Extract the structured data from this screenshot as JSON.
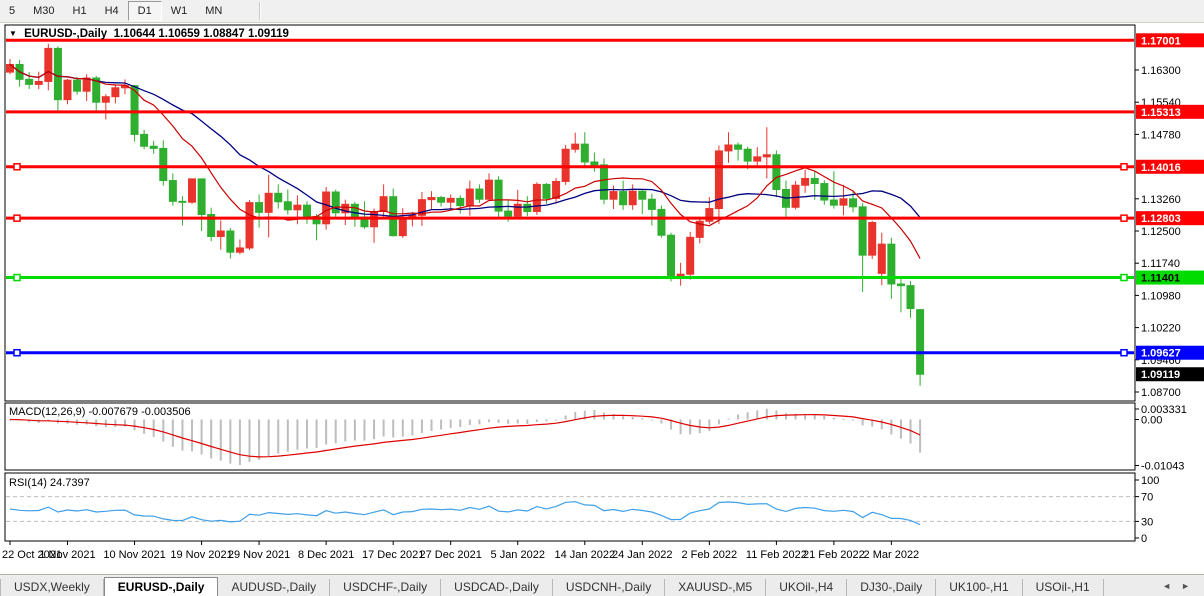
{
  "toolbar": {
    "timeframes": [
      {
        "label": "5",
        "active": false
      },
      {
        "label": "M30",
        "active": false
      },
      {
        "label": "H1",
        "active": false
      },
      {
        "label": "H4",
        "active": false
      },
      {
        "label": "D1",
        "active": true
      },
      {
        "label": "W1",
        "active": false
      },
      {
        "label": "MN",
        "active": false
      }
    ]
  },
  "chart_header": {
    "dropdown_icon": "▼",
    "symbol": "EURUSD-,Daily",
    "open": "1.10644",
    "high": "1.10659",
    "low": "1.08847",
    "close": "1.09119"
  },
  "indicators": {
    "macd": {
      "label": "MACD(12,26,9)",
      "main_value": "-0.007679",
      "signal_value": "-0.003506",
      "axis_labels": [
        "0.003331",
        "0.00",
        "-0.01043"
      ],
      "axis_values": [
        0.003331,
        0.0,
        -0.01043
      ],
      "fast": 12,
      "slow": 26,
      "signal": 9
    },
    "rsi": {
      "label": "RSI(14)",
      "value": "24.7397",
      "period": 14,
      "axis_labels": [
        "100",
        "70",
        "30",
        "0"
      ],
      "axis_values": [
        100,
        70,
        30,
        0
      ],
      "levels": [
        70,
        30
      ]
    }
  },
  "chart_data": {
    "type": "candlestick",
    "title": "EURUSD-,Daily",
    "symbol": "EURUSD",
    "timeframe": "Daily",
    "last_ohlc": {
      "open": 1.10644,
      "high": 1.10659,
      "low": 1.08847,
      "close": 1.09119
    },
    "y_ticks": [
      "1.16300",
      "1.15540",
      "1.14780",
      "1.13260",
      "1.12500",
      "1.11740",
      "1.10980",
      "1.10220",
      "1.09460",
      "1.08700"
    ],
    "y_range": [
      1.087,
      1.1706
    ],
    "grid": false,
    "x_labels": [
      {
        "label": "22 Oct 2021",
        "idx": 0
      },
      {
        "label": "1 Nov 2021",
        "idx": 6
      },
      {
        "label": "10 Nov 2021",
        "idx": 13
      },
      {
        "label": "19 Nov 2021",
        "idx": 20
      },
      {
        "label": "29 Nov 2021",
        "idx": 26
      },
      {
        "label": "8 Dec 2021",
        "idx": 33
      },
      {
        "label": "17 Dec 2021",
        "idx": 40
      },
      {
        "label": "27 Dec 2021",
        "idx": 46
      },
      {
        "label": "5 Jan 2022",
        "idx": 53
      },
      {
        "label": "14 Jan 2022",
        "idx": 60
      },
      {
        "label": "24 Jan 2022",
        "idx": 66
      },
      {
        "label": "2 Feb 2022",
        "idx": 73
      },
      {
        "label": "11 Feb 2022",
        "idx": 80
      },
      {
        "label": "21 Feb 2022",
        "idx": 86
      },
      {
        "label": "2 Mar 2022",
        "idx": 92
      }
    ],
    "hlines": [
      {
        "price": 1.17001,
        "label": "1.17001",
        "color": "#ff0000",
        "label_text": "#ffffff",
        "handles": false
      },
      {
        "price": 1.15313,
        "label": "1.15313",
        "color": "#ff0000",
        "label_text": "#ffffff",
        "handles": false
      },
      {
        "price": 1.14016,
        "label": "1.14016",
        "color": "#ff0000",
        "label_text": "#ffffff",
        "handles": true
      },
      {
        "price": 1.12803,
        "label": "1.12803",
        "color": "#ff0000",
        "label_text": "#ffffff",
        "handles": true
      },
      {
        "price": 1.11401,
        "label": "1.11401",
        "color": "#00dc00",
        "label_text": "#000000",
        "handles": true
      },
      {
        "price": 1.09627,
        "label": "1.09627",
        "color": "#0000ff",
        "label_text": "#ffffff",
        "handles": true
      }
    ],
    "current_price": {
      "value": 1.09119,
      "label": "1.09119",
      "bg": "#000000",
      "text": "#ffffff"
    },
    "ma_fast_period": 10,
    "ma_slow_period": 20,
    "candles": [
      [
        1.1625,
        1.1656,
        1.162,
        1.1643
      ],
      [
        1.1643,
        1.1654,
        1.1591,
        1.1608
      ],
      [
        1.1608,
        1.1625,
        1.1585,
        1.1596
      ],
      [
        1.1596,
        1.1626,
        1.1585,
        1.1603
      ],
      [
        1.1603,
        1.1692,
        1.1582,
        1.1681
      ],
      [
        1.1681,
        1.1686,
        1.1535,
        1.156
      ],
      [
        1.156,
        1.1609,
        1.1549,
        1.1606
      ],
      [
        1.1606,
        1.1614,
        1.1572,
        1.158
      ],
      [
        1.158,
        1.162,
        1.1557,
        1.1611
      ],
      [
        1.1611,
        1.1616,
        1.1528,
        1.1554
      ],
      [
        1.1554,
        1.1573,
        1.1513,
        1.1567
      ],
      [
        1.1567,
        1.1596,
        1.1551,
        1.1588
      ],
      [
        1.1588,
        1.1608,
        1.1573,
        1.1593
      ],
      [
        1.1593,
        1.1595,
        1.1461,
        1.1478
      ],
      [
        1.1478,
        1.1489,
        1.1443,
        1.145
      ],
      [
        1.145,
        1.1463,
        1.1432,
        1.1445
      ],
      [
        1.1445,
        1.1464,
        1.1357,
        1.1369
      ],
      [
        1.1369,
        1.1386,
        1.131,
        1.132
      ],
      [
        1.132,
        1.1332,
        1.1263,
        1.1318
      ],
      [
        1.1318,
        1.1374,
        1.1314,
        1.1373
      ],
      [
        1.1373,
        1.1374,
        1.125,
        1.1289
      ],
      [
        1.1289,
        1.1305,
        1.1226,
        1.1237
      ],
      [
        1.1237,
        1.1275,
        1.1206,
        1.125
      ],
      [
        1.125,
        1.1257,
        1.1185,
        1.12
      ],
      [
        1.12,
        1.123,
        1.1195,
        1.121
      ],
      [
        1.121,
        1.1323,
        1.1205,
        1.1317
      ],
      [
        1.1317,
        1.1336,
        1.1258,
        1.1294
      ],
      [
        1.1294,
        1.1383,
        1.1235,
        1.1339
      ],
      [
        1.1339,
        1.136,
        1.1303,
        1.1319
      ],
      [
        1.1319,
        1.1348,
        1.1289,
        1.13
      ],
      [
        1.13,
        1.1334,
        1.1266,
        1.1311
      ],
      [
        1.1311,
        1.132,
        1.1267,
        1.1284
      ],
      [
        1.1284,
        1.129,
        1.1228,
        1.1267
      ],
      [
        1.1267,
        1.1354,
        1.1253,
        1.1342
      ],
      [
        1.1342,
        1.1348,
        1.128,
        1.1293
      ],
      [
        1.1293,
        1.1324,
        1.1264,
        1.1313
      ],
      [
        1.1313,
        1.1319,
        1.126,
        1.1283
      ],
      [
        1.1283,
        1.132,
        1.1255,
        1.126
      ],
      [
        1.126,
        1.1303,
        1.1222,
        1.1296
      ],
      [
        1.1296,
        1.136,
        1.1281,
        1.1331
      ],
      [
        1.1331,
        1.135,
        1.1237,
        1.1239
      ],
      [
        1.1239,
        1.1304,
        1.1234,
        1.1281
      ],
      [
        1.1281,
        1.1295,
        1.1261,
        1.1287
      ],
      [
        1.1287,
        1.1342,
        1.1262,
        1.1324
      ],
      [
        1.1324,
        1.1344,
        1.13,
        1.1329
      ],
      [
        1.1329,
        1.1333,
        1.1308,
        1.1318
      ],
      [
        1.1318,
        1.1336,
        1.1302,
        1.1327
      ],
      [
        1.1327,
        1.1334,
        1.1291,
        1.131
      ],
      [
        1.131,
        1.1369,
        1.1286,
        1.1349
      ],
      [
        1.1349,
        1.136,
        1.1316,
        1.1325
      ],
      [
        1.1325,
        1.1386,
        1.1321,
        1.137
      ],
      [
        1.137,
        1.1379,
        1.1279,
        1.1297
      ],
      [
        1.1297,
        1.1324,
        1.1272,
        1.1285
      ],
      [
        1.1285,
        1.1347,
        1.1278,
        1.1313
      ],
      [
        1.1313,
        1.1332,
        1.1285,
        1.1296
      ],
      [
        1.1296,
        1.1365,
        1.1288,
        1.136
      ],
      [
        1.136,
        1.1363,
        1.1314,
        1.1327
      ],
      [
        1.1327,
        1.1375,
        1.1315,
        1.1367
      ],
      [
        1.1367,
        1.1453,
        1.1359,
        1.1443
      ],
      [
        1.1443,
        1.1482,
        1.1435,
        1.1455
      ],
      [
        1.1455,
        1.1483,
        1.1398,
        1.1413
      ],
      [
        1.1413,
        1.1435,
        1.139,
        1.1406
      ],
      [
        1.1406,
        1.1421,
        1.1313,
        1.1325
      ],
      [
        1.1325,
        1.1357,
        1.1302,
        1.1343
      ],
      [
        1.1343,
        1.1369,
        1.13,
        1.1312
      ],
      [
        1.1312,
        1.136,
        1.13,
        1.1344
      ],
      [
        1.1344,
        1.1349,
        1.129,
        1.1325
      ],
      [
        1.1325,
        1.1338,
        1.1263,
        1.1301
      ],
      [
        1.1301,
        1.131,
        1.1234,
        1.124
      ],
      [
        1.124,
        1.1246,
        1.1131,
        1.1145
      ],
      [
        1.1145,
        1.1175,
        1.1121,
        1.1148
      ],
      [
        1.1148,
        1.1248,
        1.1135,
        1.1235
      ],
      [
        1.1235,
        1.1279,
        1.1221,
        1.1273
      ],
      [
        1.1273,
        1.133,
        1.1267,
        1.1303
      ],
      [
        1.1303,
        1.1452,
        1.1267,
        1.1439
      ],
      [
        1.1439,
        1.1483,
        1.1411,
        1.1453
      ],
      [
        1.1453,
        1.1459,
        1.1416,
        1.1443
      ],
      [
        1.1443,
        1.1449,
        1.1396,
        1.1415
      ],
      [
        1.1415,
        1.1448,
        1.1402,
        1.1425
      ],
      [
        1.1425,
        1.1495,
        1.1374,
        1.143
      ],
      [
        1.143,
        1.144,
        1.133,
        1.1348
      ],
      [
        1.1348,
        1.1369,
        1.1278,
        1.1306
      ],
      [
        1.1306,
        1.1368,
        1.1301,
        1.1358
      ],
      [
        1.1358,
        1.1395,
        1.134,
        1.1374
      ],
      [
        1.1374,
        1.1392,
        1.1324,
        1.1362
      ],
      [
        1.1362,
        1.137,
        1.1312,
        1.1323
      ],
      [
        1.1323,
        1.1391,
        1.1303,
        1.1311
      ],
      [
        1.1311,
        1.1359,
        1.1287,
        1.1326
      ],
      [
        1.1326,
        1.1344,
        1.1294,
        1.1307
      ],
      [
        1.1307,
        1.1316,
        1.1106,
        1.1193
      ],
      [
        1.1193,
        1.1274,
        1.1184,
        1.127
      ],
      [
        1.115,
        1.1246,
        1.1122,
        1.1219
      ],
      [
        1.1219,
        1.1234,
        1.109,
        1.1125
      ],
      [
        1.1125,
        1.1139,
        1.1058,
        1.1121
      ],
      [
        1.1121,
        1.1132,
        1.1045,
        1.1067
      ],
      [
        1.10644,
        1.10659,
        1.08847,
        1.09119
      ]
    ]
  },
  "bottom_tabs": {
    "tabs": [
      {
        "label": "USDX,Weekly",
        "active": false
      },
      {
        "label": "EURUSD-,Daily",
        "active": true
      },
      {
        "label": "AUDUSD-,Daily",
        "active": false
      },
      {
        "label": "USDCHF-,Daily",
        "active": false
      },
      {
        "label": "USDCAD-,Daily",
        "active": false
      },
      {
        "label": "USDCNH-,Daily",
        "active": false
      },
      {
        "label": "XAUUSD-,M5",
        "active": false
      },
      {
        "label": "UKOil-,H4",
        "active": false
      },
      {
        "label": "DJ30-,Daily",
        "active": false
      },
      {
        "label": "UK100-,H1",
        "active": false
      },
      {
        "label": "USOil-,H1",
        "active": false
      }
    ],
    "scroll_left_icon": "◄",
    "scroll_right_icon": "►"
  },
  "colors": {
    "bull": "#e8342c",
    "bear": "#2fae2f",
    "ma_fast": "#cc0000",
    "ma_slow": "#000080",
    "macd_hist": "#bdbdbd",
    "macd_signal": "#e00000",
    "rsi": "#3f9fe8",
    "panel_border": "#000000",
    "axis_text": "#000000",
    "level_dash": "#bdbdbd"
  }
}
